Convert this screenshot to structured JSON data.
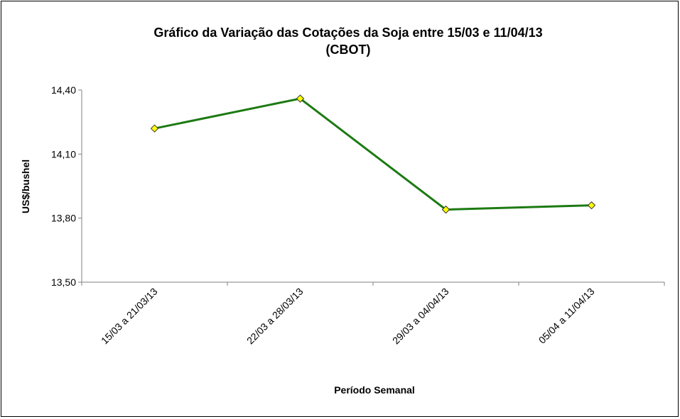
{
  "chart_data": {
    "type": "line",
    "title": [
      "Gráfico da Variação das Cotações da Soja entre 15/03 e 11/04/13",
      "(CBOT)"
    ],
    "x_label": "Período Semanal",
    "y_label": "US$/bushel",
    "categories": [
      "15/03 a 21/03/13",
      "22/03 a 28/03/13",
      "29/03 a 04/04/13",
      "05/04 a 11/04/13"
    ],
    "series": [
      {
        "color": "#1c7a12",
        "marker_color": "#ffff00",
        "values": [
          14.22,
          14.36,
          13.84,
          13.86
        ]
      }
    ],
    "ylim": [
      13.5,
      14.4
    ],
    "yticks": [
      {
        "value": 13.5,
        "label": "13,50"
      },
      {
        "value": 13.8,
        "label": "13,80"
      },
      {
        "value": 14.1,
        "label": "14,10"
      },
      {
        "value": 14.4,
        "label": "14,40"
      }
    ]
  }
}
